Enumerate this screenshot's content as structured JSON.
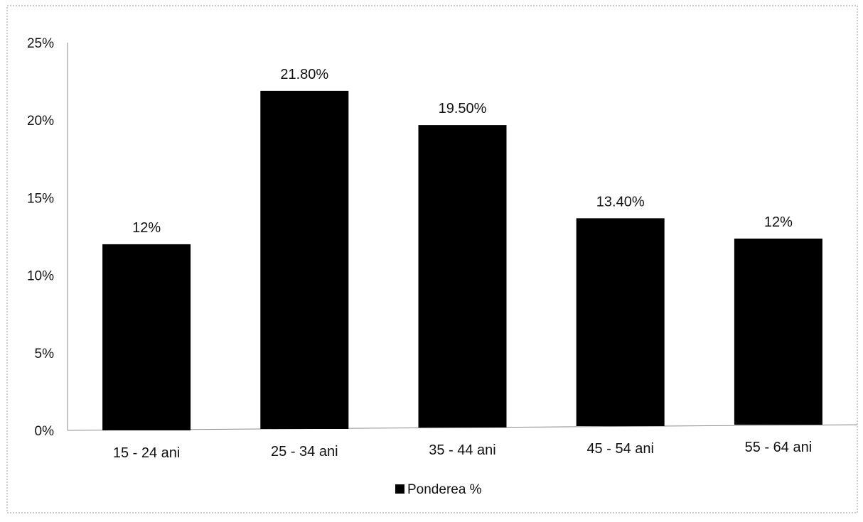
{
  "chart_data": {
    "type": "bar",
    "categories": [
      "15 - 24 ani",
      "25 - 34 ani",
      "35 - 44 ani",
      "45 - 54 ani",
      "55 - 64 ani"
    ],
    "series": [
      {
        "name": "Ponderea %",
        "values": [
          12,
          21.8,
          19.5,
          13.4,
          12
        ],
        "labels": [
          "12%",
          "21.80%",
          "19.50%",
          "13.40%",
          "12%"
        ],
        "color": "#000000"
      }
    ],
    "y_ticks": [
      "0%",
      "5%",
      "10%",
      "15%",
      "20%",
      "25%"
    ],
    "ylim": [
      0,
      25
    ],
    "title": "",
    "xlabel": "",
    "ylabel": "",
    "grid": false,
    "legend": {
      "position": "bottom",
      "label": "Ponderea %"
    }
  }
}
